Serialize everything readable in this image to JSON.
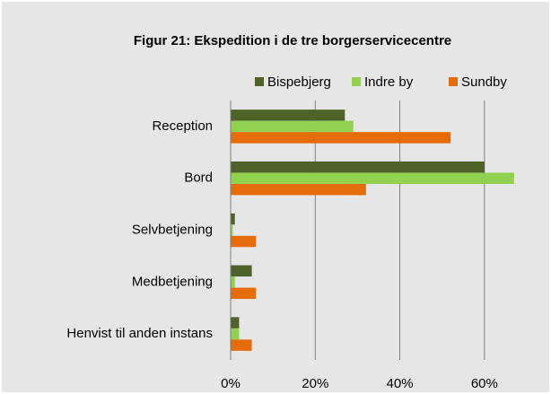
{
  "chart_data": {
    "type": "hbar",
    "title": "Figur 21: Ekspedition i de tre borgerservicecentre",
    "categories": [
      "Reception",
      "Bord",
      "Selvbetjening",
      "Medbetjening",
      "Henvist til anden instans"
    ],
    "series": [
      {
        "name": "Bispebjerg",
        "color": "#4f6228",
        "values": [
          27,
          60,
          1,
          5,
          2
        ]
      },
      {
        "name": "Indre by",
        "color": "#92d050",
        "values": [
          29,
          67,
          0.5,
          1,
          2
        ]
      },
      {
        "name": "Sundby",
        "color": "#e46c0a",
        "values": [
          52,
          32,
          6,
          6,
          5
        ]
      }
    ],
    "xlim": [
      0,
      70
    ],
    "xticks": [
      {
        "value": 0,
        "label": "0%"
      },
      {
        "value": 20,
        "label": "20%"
      },
      {
        "value": 40,
        "label": "40%"
      },
      {
        "value": 60,
        "label": "60%"
      }
    ],
    "grid": true,
    "legend": "top"
  }
}
